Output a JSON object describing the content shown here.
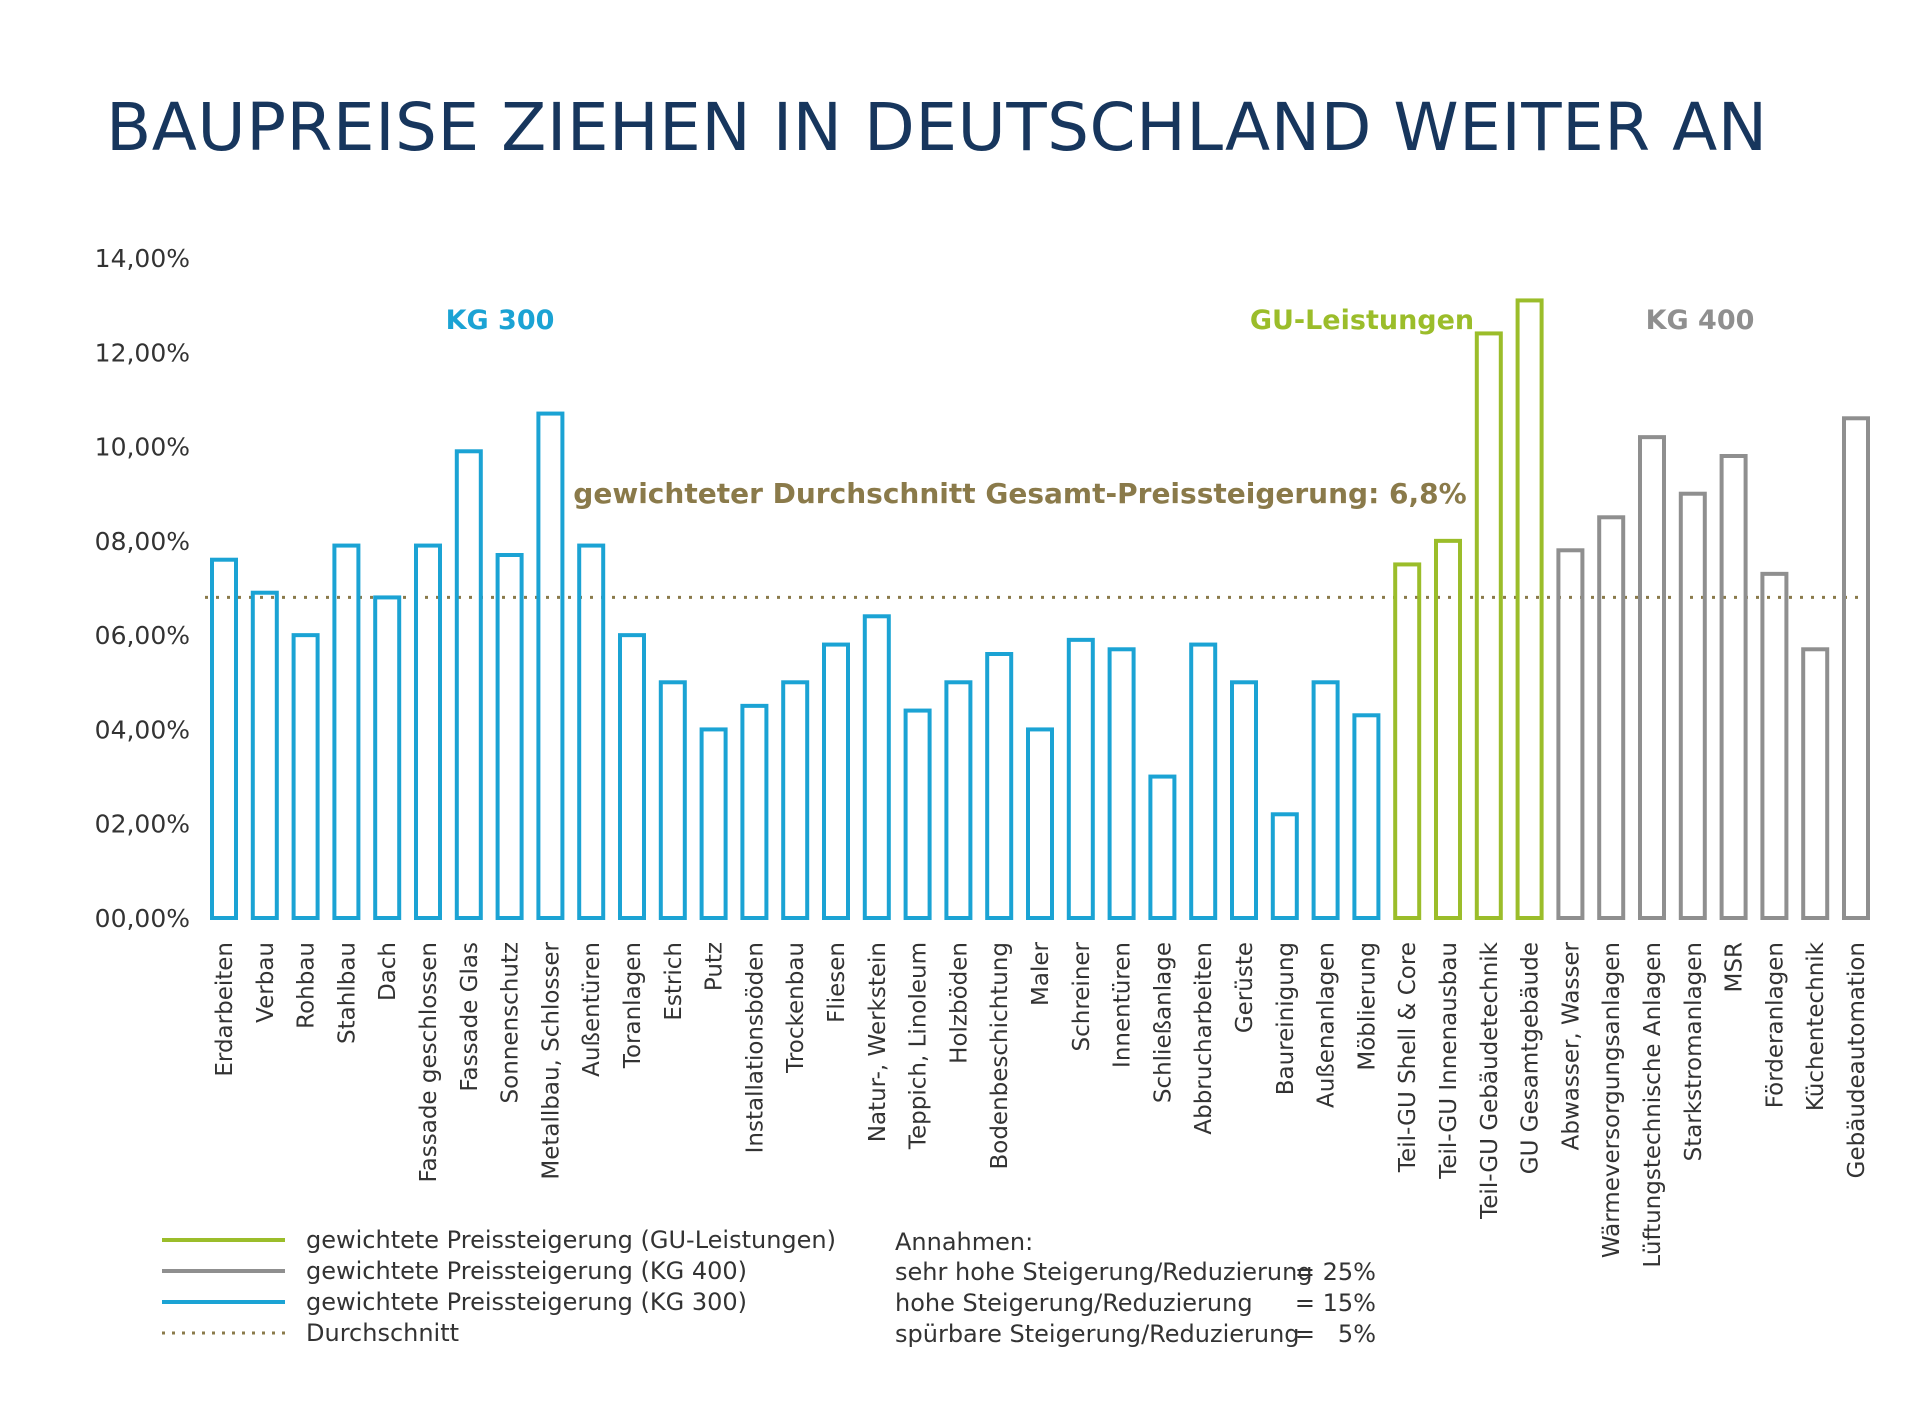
{
  "title": "BAUPREISE ZIEHEN IN DEUTSCHLAND WEITER AN",
  "colors": {
    "kg300": "#1ba3d4",
    "gu": "#9bbd2a",
    "kg400": "#8f8f8f",
    "average": "#8a7a4a",
    "title": "#17365d"
  },
  "chart_data": {
    "type": "bar",
    "title": "BAUPREISE ZIEHEN IN DEUTSCHLAND WEITER AN",
    "xlabel": "",
    "ylabel": "",
    "ylim": [
      0,
      14
    ],
    "yticks": [
      0,
      2,
      4,
      6,
      8,
      10,
      12,
      14
    ],
    "ytick_labels": [
      "00,00%",
      "02,00%",
      "04,00%",
      "06,00%",
      "08,00%",
      "10,00%",
      "12,00%",
      "14,00%"
    ],
    "grid": false,
    "average_value": 6.8,
    "average_label": "gewichteter Durchschnitt Gesamt-Preissteigerung: 6,8%",
    "group_labels": [
      "KG 300",
      "GU-Leistungen",
      "KG 400"
    ],
    "series": [
      {
        "name": "gewichtete Preissteigerung (KG 300)",
        "group": "kg300",
        "categories": [
          "Erdarbeiten",
          "Verbau",
          "Rohbau",
          "Stahlbau",
          "Dach",
          "Fassade geschlossen",
          "Fassade Glas",
          "Sonnenschutz",
          "Metallbau, Schlosser",
          "Außentüren",
          "Toranlagen",
          "Estrich",
          "Putz",
          "Installationsböden",
          "Trockenbau",
          "Fliesen",
          "Natur-, Werkstein",
          "Teppich, Linoleum",
          "Holzböden",
          "Bodenbeschichtung",
          "Maler",
          "Schreiner",
          "Innentüren",
          "Schließanlage",
          "Abbrucharbeiten",
          "Gerüste",
          "Baureinigung",
          "Außenanlagen",
          "Möblierung"
        ],
        "values": [
          7.6,
          6.9,
          6.0,
          7.9,
          6.8,
          7.9,
          9.9,
          7.7,
          10.7,
          7.9,
          6.0,
          5.0,
          4.0,
          4.5,
          5.0,
          5.8,
          6.4,
          4.4,
          5.0,
          5.6,
          4.0,
          5.9,
          5.7,
          3.0,
          5.8,
          5.0,
          2.2,
          5.0,
          4.3
        ]
      },
      {
        "name": "gewichtete Preissteigerung (GU-Leistungen)",
        "group": "gu",
        "categories": [
          "Teil-GU Shell & Core",
          "Teil-GU Innenausbau",
          "Teil-GU Gebäudetechnik",
          "GU Gesamtgebäude"
        ],
        "values": [
          7.5,
          8.0,
          12.4,
          13.1
        ]
      },
      {
        "name": "gewichtete Preissteigerung (KG 400)",
        "group": "kg400",
        "categories": [
          "Abwasser, Wasser",
          "Wärmeversorgungsanlagen",
          "Lüftungstechnische Anlagen",
          "Starkstromanlagen",
          "MSR",
          "Förderanlagen",
          "Küchentechnik",
          "Gebäudeautomation"
        ],
        "values": [
          7.8,
          8.5,
          10.2,
          9.0,
          9.8,
          7.3,
          5.7,
          10.6
        ]
      }
    ]
  },
  "legend": [
    {
      "label": "gewichtete Preissteigerung (GU-Leistungen)",
      "style": "gu"
    },
    {
      "label": "gewichtete Preissteigerung (KG 400)",
      "style": "kg400"
    },
    {
      "label": "gewichtete Preissteigerung (KG 300)",
      "style": "kg300"
    },
    {
      "label": "Durchschnitt",
      "style": "average"
    }
  ],
  "assumptions": {
    "heading": "Annahmen:",
    "rows": [
      {
        "label": "sehr hohe Steigerung/Reduzierung",
        "value": "= 25%"
      },
      {
        "label": "hohe Steigerung/Reduzierung",
        "value": "= 15%"
      },
      {
        "label": "spürbare Steigerung/Reduzierung",
        "value": "=   5%"
      }
    ]
  }
}
